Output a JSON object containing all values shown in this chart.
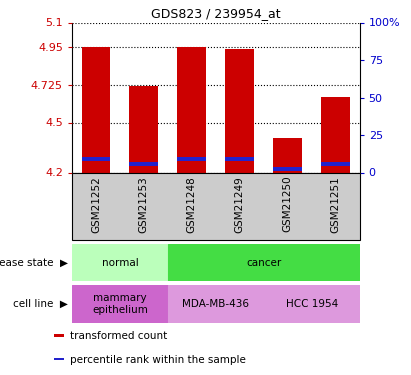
{
  "title": "GDS823 / 239954_at",
  "samples": [
    "GSM21252",
    "GSM21253",
    "GSM21248",
    "GSM21249",
    "GSM21250",
    "GSM21251"
  ],
  "transformed_counts": [
    4.95,
    4.72,
    4.95,
    4.94,
    4.41,
    4.65
  ],
  "percentile_ranks_value": [
    4.28,
    4.25,
    4.28,
    4.28,
    4.22,
    4.25
  ],
  "base_value": 4.2,
  "ylim_left": [
    4.2,
    5.1
  ],
  "yticks_left": [
    4.2,
    4.5,
    4.725,
    4.95,
    5.1
  ],
  "ytick_labels_left": [
    "4.2",
    "4.5",
    "4.725",
    "4.95",
    "5.1"
  ],
  "yticks_right_pct": [
    0,
    25,
    50,
    75,
    100
  ],
  "ytick_labels_right": [
    "0",
    "25",
    "50",
    "75",
    "100%"
  ],
  "bar_color": "#cc0000",
  "percentile_color": "#2222cc",
  "percentile_bar_height": 0.022,
  "bar_width": 0.6,
  "disease_state_groups": [
    {
      "label": "normal",
      "span": [
        0,
        2
      ],
      "color": "#bbffbb"
    },
    {
      "label": "cancer",
      "span": [
        2,
        6
      ],
      "color": "#44dd44"
    }
  ],
  "cell_line_groups": [
    {
      "label": "mammary\nepithelium",
      "span": [
        0,
        2
      ],
      "color": "#cc66cc"
    },
    {
      "label": "MDA-MB-436",
      "span": [
        2,
        4
      ],
      "color": "#dd99dd"
    },
    {
      "label": "HCC 1954",
      "span": [
        4,
        6
      ],
      "color": "#dd99dd"
    }
  ],
  "legend_items": [
    {
      "label": "transformed count",
      "color": "#cc0000"
    },
    {
      "label": "percentile rank within the sample",
      "color": "#2222cc"
    }
  ],
  "label_area_color": "#cccccc",
  "grid_linestyle": "dotted",
  "grid_color": "#000000",
  "spine_color": "#000000",
  "title_fontsize": 9,
  "tick_fontsize": 8,
  "sample_fontsize": 7.5,
  "label_fontsize": 7.5,
  "legend_fontsize": 7.5
}
